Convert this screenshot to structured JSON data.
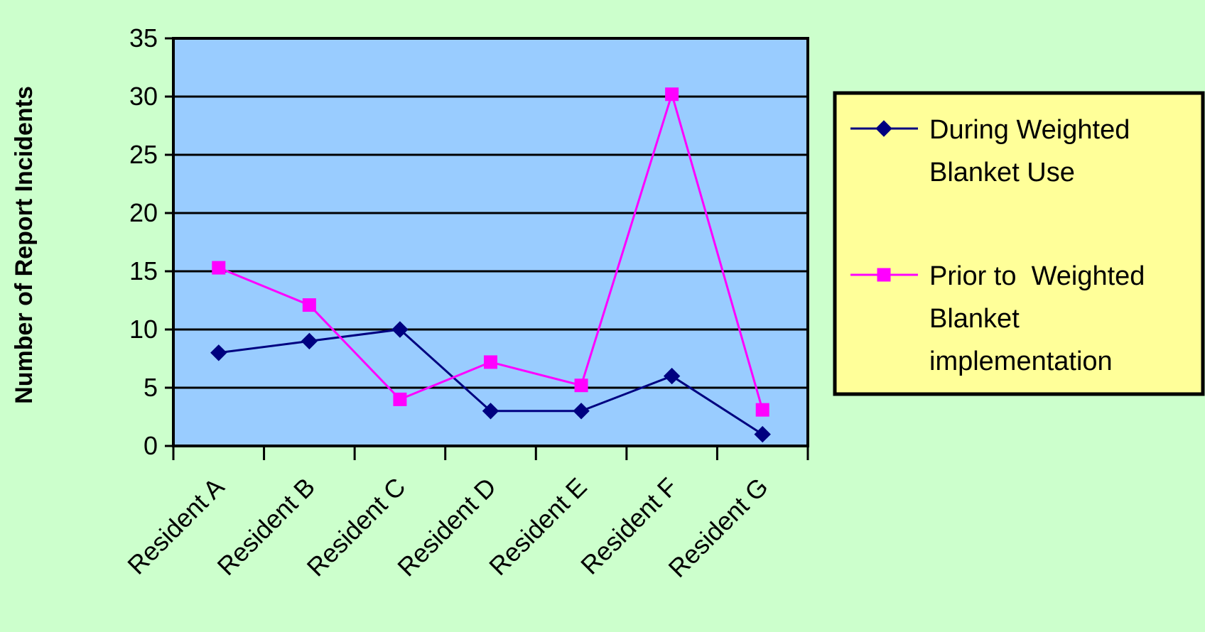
{
  "colors": {
    "page_background": "#CCFFCC",
    "plot_background": "#99CCFF",
    "axis": "#000000",
    "legend_background": "#FFFF99"
  },
  "chart_data": {
    "type": "line",
    "title": "",
    "xlabel": "",
    "ylabel": "Number of Report Incidents",
    "ylim": [
      0,
      35
    ],
    "yticks": [
      0,
      5,
      10,
      15,
      20,
      25,
      30,
      35
    ],
    "ytick_labels": [
      "0",
      "5",
      "10",
      "15",
      "20",
      "25",
      "30",
      "35"
    ],
    "grid": "horizontal",
    "legend_position": "right",
    "categories": [
      "Resident A",
      "Resident B",
      "Resident C",
      "Resident D",
      "Resident E",
      "Resident F",
      "Resident G"
    ],
    "series": [
      {
        "name": "During Weighted Blanket Use",
        "legend_lines": [
          "During Weighted",
          "Blanket Use"
        ],
        "color": "#000080",
        "marker": "diamond",
        "values": [
          8,
          9,
          10,
          3,
          3,
          6,
          1
        ]
      },
      {
        "name": "Prior to Weighted Blanket implementation",
        "legend_lines": [
          "Prior to  Weighted",
          "Blanket",
          "implementation"
        ],
        "color": "#FF00FF",
        "marker": "square",
        "values": [
          15.3,
          12.1,
          4,
          7.2,
          5.2,
          30.2,
          3.1
        ]
      }
    ]
  }
}
